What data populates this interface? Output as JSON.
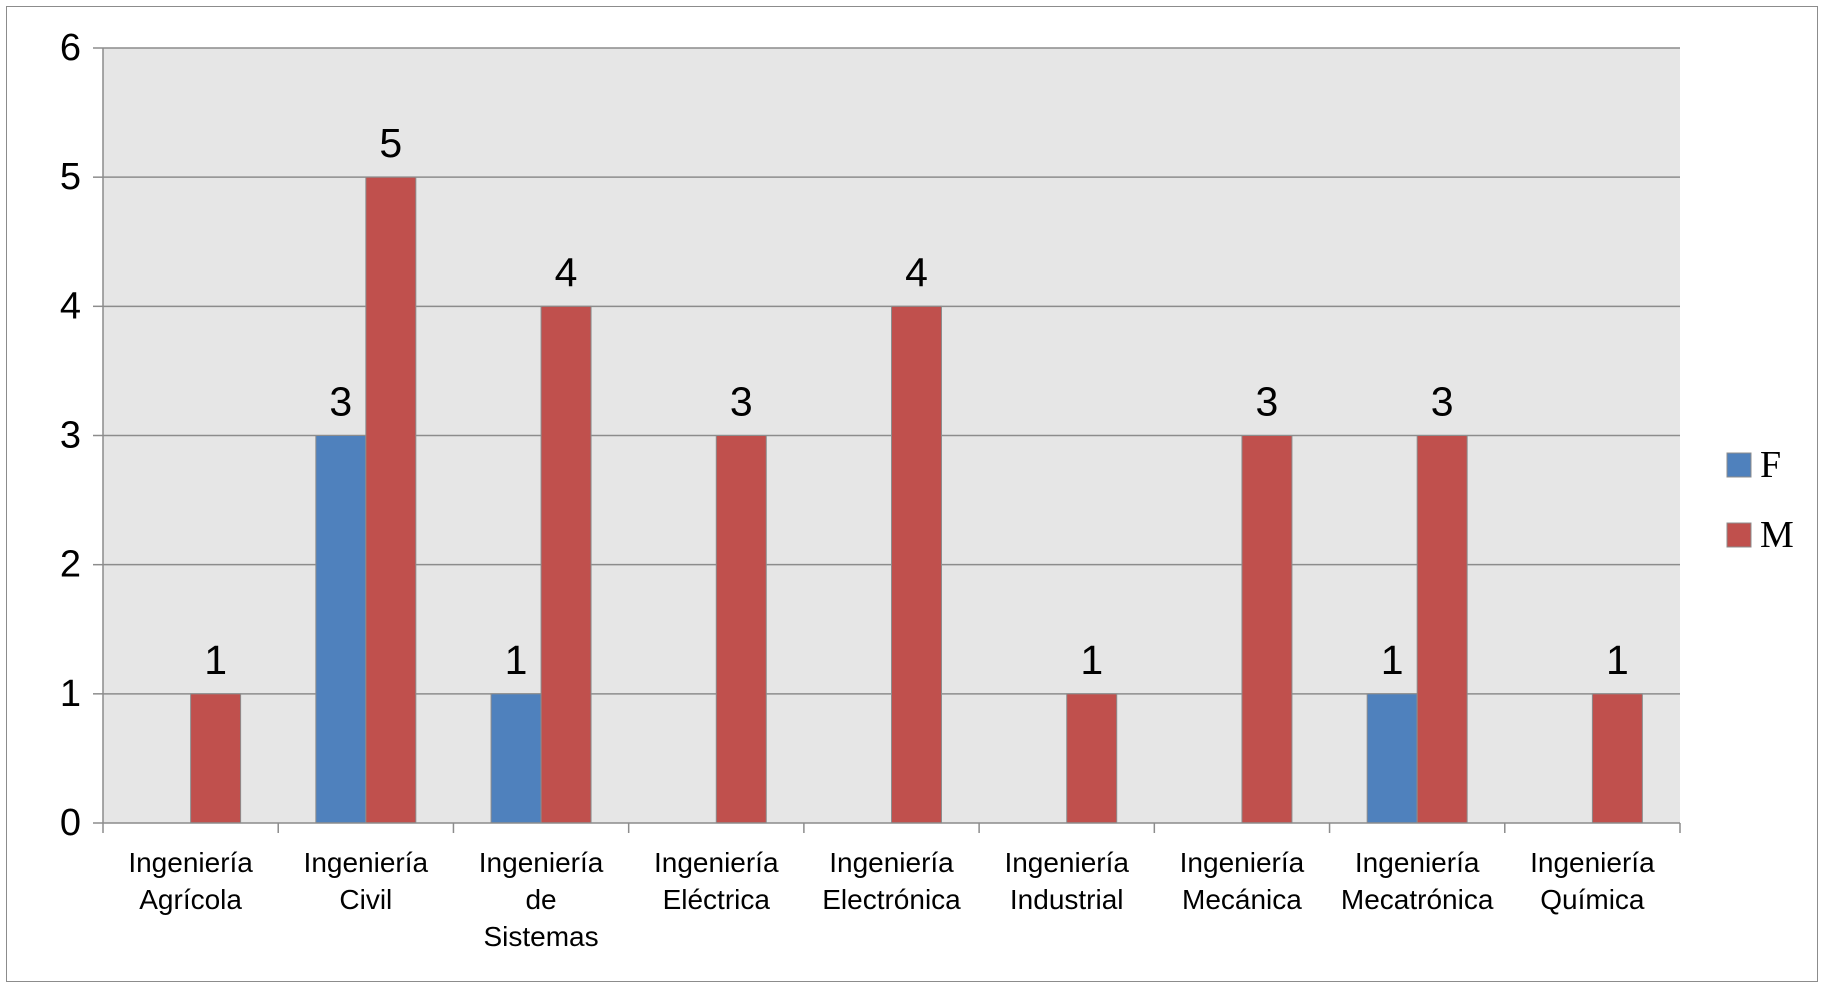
{
  "chart_data": {
    "type": "bar",
    "title": "",
    "xlabel": "",
    "ylabel": "",
    "ylim": [
      0,
      6
    ],
    "yticks": [
      0,
      1,
      2,
      3,
      4,
      5,
      6
    ],
    "grid": true,
    "legend_position": "right",
    "categories": [
      [
        "Ingeniería",
        "Agrícola"
      ],
      [
        "Ingeniería",
        "Civil"
      ],
      [
        "Ingeniería",
        "de",
        "Sistemas"
      ],
      [
        "Ingeniería",
        "Eléctrica"
      ],
      [
        "Ingeniería",
        "Electrónica"
      ],
      [
        "Ingeniería",
        "Industrial"
      ],
      [
        "Ingeniería",
        "Mecánica"
      ],
      [
        "Ingeniería",
        "Mecatrónica"
      ],
      [
        "Ingeniería",
        "Química"
      ]
    ],
    "series": [
      {
        "name": "F",
        "color": "#4f81bd",
        "values": [
          0,
          3,
          1,
          0,
          0,
          0,
          0,
          1,
          0
        ]
      },
      {
        "name": "M",
        "color": "#c0504d",
        "values": [
          1,
          5,
          4,
          3,
          4,
          1,
          3,
          3,
          1
        ]
      }
    ],
    "plot_background": "#e6e6e6",
    "gridline_color": "#8c8c8c"
  }
}
